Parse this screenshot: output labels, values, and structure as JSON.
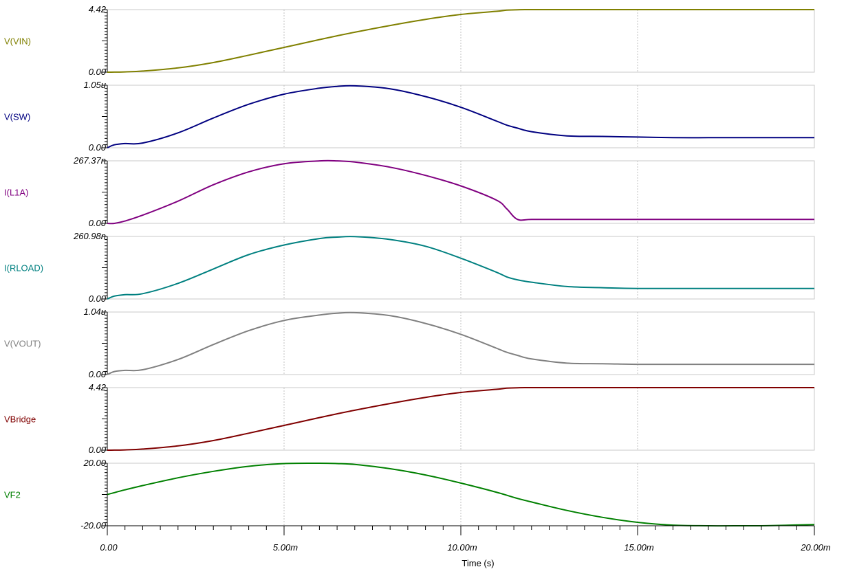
{
  "chart_data": {
    "type": "line",
    "xlabel": "Time (s)",
    "x_tick_labels": [
      "0.00",
      "5.00m",
      "10.00m",
      "15.00m",
      "20.00m"
    ],
    "x_ticks": [
      0,
      5,
      10,
      15,
      20
    ],
    "xlim": [
      0,
      20
    ],
    "x_unit": "ms",
    "grid": "vertical dotted at major x ticks",
    "x": [
      0,
      0.2,
      0.5,
      1,
      2,
      3,
      4,
      5,
      6,
      6.5,
      7,
      8,
      9,
      10,
      11,
      11.3,
      11.6,
      12,
      13,
      14,
      15,
      16,
      17,
      18,
      18.5,
      19,
      20
    ],
    "series": [
      {
        "name": "V(VIN)",
        "color": "#808000",
        "ylim": [
          0,
          4.42
        ],
        "y_tick_labels": [
          "4.42",
          "0.00"
        ],
        "values": [
          0,
          0.003,
          0.02,
          0.08,
          0.3,
          0.68,
          1.2,
          1.75,
          2.3,
          2.57,
          2.82,
          3.3,
          3.73,
          4.08,
          4.3,
          4.38,
          4.41,
          4.42,
          4.42,
          4.42,
          4.42,
          4.42,
          4.42,
          4.42,
          4.42,
          4.42,
          4.42
        ]
      },
      {
        "name": "V(SW)",
        "color": "#000080",
        "ylim": [
          0,
          1.05
        ],
        "y_tick_labels": [
          "1.05u",
          "0.00"
        ],
        "values": [
          0,
          0.05,
          0.07,
          0.08,
          0.25,
          0.5,
          0.73,
          0.9,
          1.0,
          1.03,
          1.04,
          0.99,
          0.86,
          0.68,
          0.45,
          0.38,
          0.33,
          0.27,
          0.2,
          0.19,
          0.18,
          0.17,
          0.17,
          0.17,
          0.17,
          0.17,
          0.17
        ]
      },
      {
        "name": "I(L1A)",
        "color": "#800080",
        "ylim": [
          0,
          267.37
        ],
        "y_tick_labels": [
          "267.37n",
          "0.00"
        ],
        "values": [
          0,
          0,
          10,
          35,
          95,
          165,
          220,
          255,
          267,
          267,
          262,
          240,
          205,
          160,
          100,
          62,
          17,
          17,
          17,
          17,
          17,
          17,
          17,
          17,
          17,
          17,
          17
        ]
      },
      {
        "name": "I(RLOAD)",
        "color": "#008080",
        "ylim": [
          0,
          260.98
        ],
        "y_tick_labels": [
          "260.98n",
          "0.00"
        ],
        "values": [
          0,
          12,
          18,
          22,
          65,
          125,
          185,
          225,
          252,
          258,
          260,
          248,
          220,
          170,
          112,
          92,
          80,
          70,
          52,
          47,
          44,
          44,
          44,
          44,
          44,
          44,
          44
        ]
      },
      {
        "name": "V(VOUT)",
        "color": "#808080",
        "ylim": [
          0,
          1.04
        ],
        "y_tick_labels": [
          "1.04u",
          "0.00"
        ],
        "values": [
          0,
          0.05,
          0.07,
          0.08,
          0.25,
          0.5,
          0.73,
          0.9,
          0.99,
          1.02,
          1.03,
          0.98,
          0.85,
          0.67,
          0.44,
          0.37,
          0.32,
          0.26,
          0.19,
          0.18,
          0.17,
          0.17,
          0.17,
          0.17,
          0.17,
          0.17,
          0.17
        ]
      },
      {
        "name": "VBridge",
        "color": "#800000",
        "ylim": [
          0,
          4.42
        ],
        "y_tick_labels": [
          "4.42",
          "0.00"
        ],
        "values": [
          0,
          0.003,
          0.02,
          0.08,
          0.3,
          0.68,
          1.2,
          1.75,
          2.3,
          2.57,
          2.82,
          3.3,
          3.73,
          4.08,
          4.3,
          4.38,
          4.41,
          4.42,
          4.42,
          4.42,
          4.42,
          4.42,
          4.42,
          4.42,
          4.42,
          4.42,
          4.42
        ]
      },
      {
        "name": "VF2",
        "color": "#008000",
        "ylim": [
          -20,
          20
        ],
        "y_tick_labels": [
          "20.00",
          "-20.00"
        ],
        "values": [
          0,
          1.2,
          3,
          5.7,
          10.7,
          14.8,
          18,
          19.8,
          20,
          19.8,
          19.2,
          16.5,
          12.5,
          7.3,
          1.5,
          -0.5,
          -2.5,
          -4.8,
          -10.2,
          -14.6,
          -17.8,
          -19.6,
          -20,
          -20,
          -20,
          -19.8,
          -19.2
        ]
      }
    ]
  }
}
